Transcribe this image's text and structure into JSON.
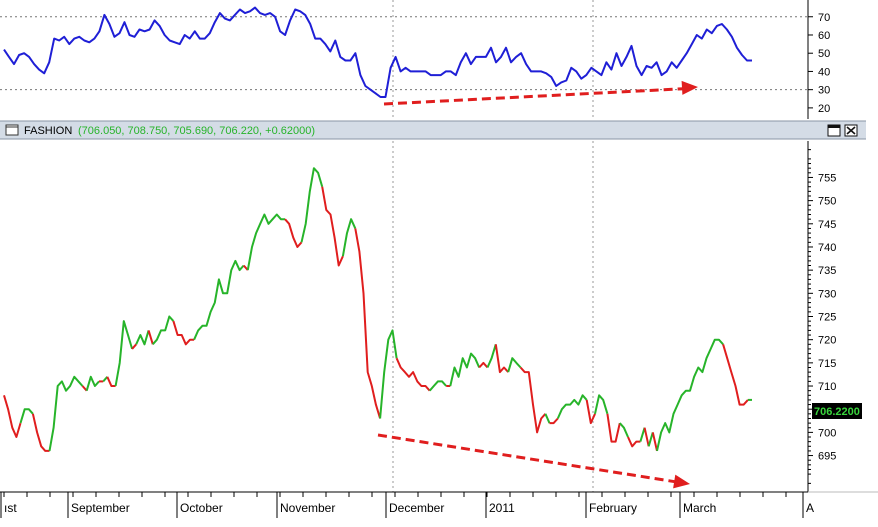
{
  "colors": {
    "osc_line": "#1f1fd6",
    "up": "#27b42a",
    "down": "#e01e1e",
    "arrow": "#e01e1e",
    "header_bg": "#d4dce6",
    "header_values": "#27b42a",
    "last_badge_bg": "#000000",
    "last_badge_text": "#39d43c"
  },
  "window_controls": {
    "maximize_icon": "maximize-icon",
    "close_icon": "close-icon"
  },
  "header": {
    "symbol": "FASHION",
    "values": "(706.050, 708.750, 705.690, 706.220, +0.62000)"
  },
  "last_price_label": "706.2200",
  "months": [
    "ıst",
    "September",
    "October",
    "November",
    "December",
    "2011",
    "February",
    "March",
    "A"
  ],
  "chart_data": [
    {
      "type": "line",
      "panel": "oscillator",
      "y_ticks": [
        "70",
        "60",
        "50",
        "40",
        "30",
        "20"
      ],
      "ylim": [
        15,
        77
      ],
      "reference_lines": [
        70,
        30
      ],
      "values": [
        52,
        48,
        44,
        49,
        50,
        48,
        44,
        41,
        39,
        45,
        58,
        57,
        59,
        55,
        58,
        59,
        57,
        56,
        58,
        62,
        71,
        66,
        59,
        61,
        67,
        60,
        59,
        63,
        62,
        63,
        68,
        65,
        60,
        57,
        56,
        55,
        60,
        58,
        62,
        58,
        58,
        61,
        67,
        72,
        69,
        68,
        71,
        74,
        72,
        73,
        75,
        72,
        71,
        72,
        70,
        62,
        60,
        68,
        74,
        73,
        71,
        66,
        58,
        58,
        55,
        51,
        57,
        48,
        46,
        46,
        50,
        38,
        32,
        30,
        28,
        26,
        26,
        42,
        48,
        40,
        42,
        40,
        40,
        40,
        40,
        38,
        38,
        38,
        40,
        40,
        38,
        45,
        50,
        44,
        48,
        48,
        48,
        53,
        45,
        48,
        53,
        45,
        48,
        50,
        44,
        40,
        40,
        40,
        39,
        37,
        32,
        34,
        35,
        42,
        40,
        36,
        38,
        42,
        40,
        38,
        45,
        41,
        50,
        43,
        48,
        54,
        43,
        38,
        43,
        42,
        45,
        38,
        40,
        45,
        42,
        46,
        50,
        55,
        60,
        58,
        63,
        61,
        65,
        66,
        63,
        59,
        53,
        49,
        46,
        46
      ]
    },
    {
      "type": "line",
      "panel": "price",
      "series_name": "FASHION",
      "y_ticks": [
        "755",
        "750",
        "745",
        "740",
        "735",
        "730",
        "725",
        "720",
        "715",
        "710",
        "705",
        "700",
        "695"
      ],
      "ylim": [
        688,
        762
      ],
      "last_value": 706.22,
      "values": [
        708,
        705,
        701,
        699,
        702,
        705,
        705,
        704,
        700,
        697,
        696,
        696,
        701,
        710,
        711,
        709,
        710,
        712,
        711,
        710,
        709,
        712,
        710,
        711,
        711,
        712,
        710,
        710,
        715,
        724,
        721,
        718,
        719,
        721,
        719,
        722,
        719,
        720,
        722,
        722,
        725,
        724,
        721,
        721,
        719,
        720,
        720,
        722,
        723,
        723,
        726,
        728,
        733,
        730,
        730,
        735,
        737,
        735,
        736,
        735,
        740,
        743,
        745,
        747,
        745,
        746,
        747,
        746,
        746,
        745,
        742,
        740,
        741,
        745,
        752,
        757,
        756,
        753,
        748,
        747,
        742,
        736,
        738,
        743,
        746,
        744,
        739,
        730,
        713,
        710,
        706,
        703,
        713,
        720,
        722,
        716,
        714,
        713,
        712,
        713,
        711,
        710,
        710,
        709,
        710,
        711,
        711,
        710,
        710,
        714,
        712,
        716,
        714,
        717,
        716,
        714,
        715,
        714,
        716,
        719,
        713,
        714,
        713,
        716,
        715,
        714,
        713,
        713,
        706,
        700,
        703,
        704,
        702,
        702,
        703,
        705,
        706,
        706,
        707,
        706,
        708,
        707,
        702,
        704,
        708,
        707,
        704,
        698,
        698,
        702,
        701,
        699,
        697,
        698,
        698,
        701,
        697,
        700,
        696,
        700,
        702,
        700,
        704,
        706,
        708,
        709,
        709,
        712,
        714,
        713,
        716,
        718,
        720,
        720,
        719,
        716,
        713,
        710,
        706,
        706,
        707,
        707
      ]
    }
  ]
}
